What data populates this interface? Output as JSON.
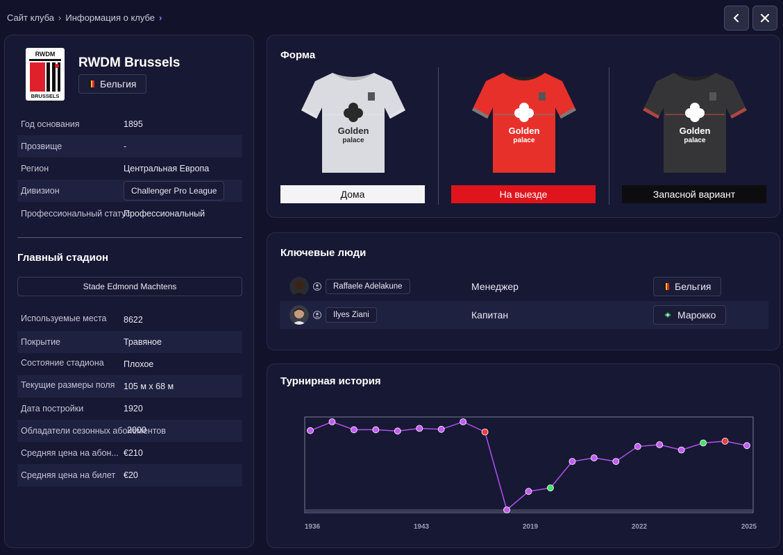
{
  "breadcrumb": {
    "items": [
      "Сайт клуба",
      "Информация о клубе"
    ]
  },
  "nav": {
    "back_icon": "chevron-left-icon",
    "close_icon": "close-icon"
  },
  "club": {
    "name": "RWDM Brussels",
    "logo_text_top": "RWDM",
    "logo_text_bottom": "BRUSSELS",
    "country": "Бельгия",
    "info": [
      {
        "label": "Год основания",
        "value": "1895"
      },
      {
        "label": "Прозвище",
        "value": "-"
      },
      {
        "label": "Регион",
        "value": "Центральная Европа"
      },
      {
        "label": "Дивизион",
        "value": "Challenger Pro League"
      },
      {
        "label": "Профессиональный статус",
        "value": "Профессиональный"
      }
    ]
  },
  "stadium": {
    "title": "Главный стадион",
    "name": "Stade Edmond Machtens",
    "info": [
      {
        "label": "Используемые места",
        "value": "8622"
      },
      {
        "label": "Покрытие",
        "value": "Травяное"
      },
      {
        "label": "Состояние стадиона",
        "value": "Плохое"
      },
      {
        "label": "Текущие размеры поля",
        "value": "105 м x 68 м"
      },
      {
        "label": "Дата постройки",
        "value": "1920"
      },
      {
        "label": "Обладатели сезонных абонементов",
        "value": "2000"
      },
      {
        "label": "Средняя цена на абон...",
        "value": "€210"
      },
      {
        "label": "Средняя цена на билет",
        "value": "€20"
      }
    ]
  },
  "kits": {
    "title": "Форма",
    "sponsor_line1": "Golden",
    "sponsor_line2": "palace",
    "items": [
      {
        "label": "Дома",
        "label_bg": "#f4f4f6",
        "label_color": "#111111",
        "shirt": "#d9dbe0",
        "collar": "#b7b9c0",
        "trim": "#e2e2e6",
        "logo_color": "#2a2a2a"
      },
      {
        "label": "На выезде",
        "label_bg": "#e0141d",
        "label_color": "#ffffff",
        "shirt": "#e8302a",
        "collar": "#222222",
        "trim": "#7a7a7a",
        "logo_color": "#ffffff"
      },
      {
        "label": "Запасной вариант",
        "label_bg": "#0d0d0f",
        "label_color": "#ffffff",
        "shirt": "#353538",
        "collar": "#222222",
        "trim": "#b0463f",
        "logo_color": "#ffffff"
      }
    ]
  },
  "key_people": {
    "title": "Ключевые люди",
    "items": [
      {
        "name": "Raffaele Adelakune",
        "role": "Менеджер",
        "nation": "Бельгия",
        "flag": "belgium-flag-icon"
      },
      {
        "name": "Ilyes Ziani",
        "role": "Капитан",
        "nation": "Марокко",
        "flag": "morocco-flag-icon"
      }
    ]
  },
  "history": {
    "title": "Турнирная история",
    "chart_data": {
      "type": "line",
      "xaxis_ticks": [
        "1936",
        "1943",
        "2019",
        "2022",
        "2025"
      ],
      "y_orientation": "rank, higher point = better finish",
      "points": [
        {
          "y": 0.9,
          "state": "neutral"
        },
        {
          "y": 1.0,
          "state": "neutral"
        },
        {
          "y": 0.91,
          "state": "neutral"
        },
        {
          "y": 0.91,
          "state": "neutral"
        },
        {
          "y": 0.895,
          "state": "neutral"
        },
        {
          "y": 0.925,
          "state": "neutral"
        },
        {
          "y": 0.915,
          "state": "neutral"
        },
        {
          "y": 1.0,
          "state": "neutral"
        },
        {
          "y": 0.885,
          "state": "relegated"
        },
        {
          "y": 0.0,
          "state": "neutral"
        },
        {
          "y": 0.21,
          "state": "neutral"
        },
        {
          "y": 0.25,
          "state": "promoted"
        },
        {
          "y": 0.55,
          "state": "neutral"
        },
        {
          "y": 0.59,
          "state": "neutral"
        },
        {
          "y": 0.55,
          "state": "neutral"
        },
        {
          "y": 0.72,
          "state": "neutral"
        },
        {
          "y": 0.74,
          "state": "neutral"
        },
        {
          "y": 0.68,
          "state": "neutral"
        },
        {
          "y": 0.76,
          "state": "promoted"
        },
        {
          "y": 0.78,
          "state": "relegated"
        },
        {
          "y": 0.73,
          "state": "neutral"
        }
      ],
      "colors": {
        "line": "#b150ef",
        "neutral": "#c35cf7",
        "relegated": "#ee3d3d",
        "promoted": "#45e36a"
      }
    }
  }
}
